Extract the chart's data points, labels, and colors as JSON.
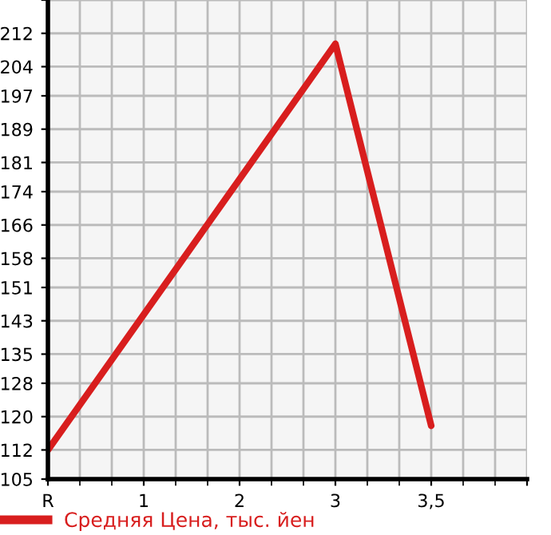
{
  "chart_data": {
    "type": "line",
    "categories": [
      "R",
      "1",
      "2",
      "3",
      "3,5",
      null
    ],
    "series": [
      {
        "name": "Средняя Цена, тыс. йен",
        "color": "#d81e1e",
        "values": [
          112,
          null,
          null,
          209.5,
          117.8,
          null
        ]
      }
    ],
    "ylim": [
      105,
      220
    ],
    "yticks": [
      105,
      112,
      120,
      128,
      135,
      143,
      151,
      158,
      166,
      174,
      181,
      189,
      197,
      204,
      212,
      {
        "value": 220,
        "label": null
      }
    ],
    "grid": true,
    "legend": "bottom left",
    "marker": "none",
    "line_style": "solid"
  }
}
